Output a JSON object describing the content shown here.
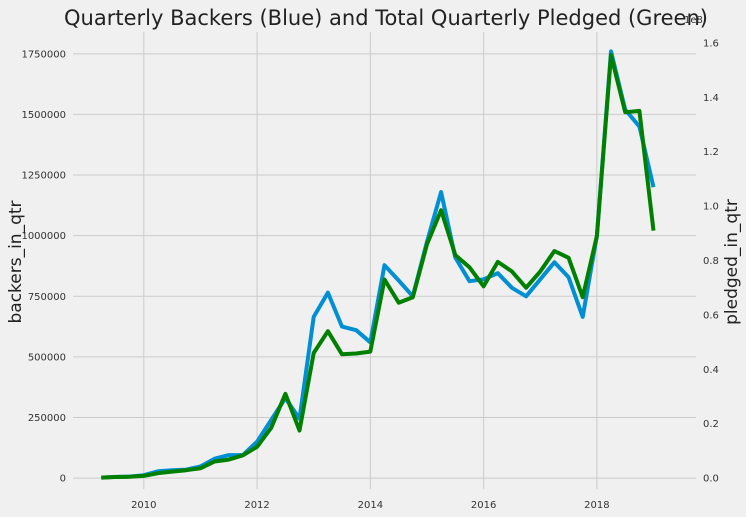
{
  "chart_data": {
    "type": "line",
    "title": "Quarterly Backers (Blue) and Total Quarterly Pledged (Green)",
    "xlabel": "",
    "ylabel_left": "backers_in_qtr",
    "ylabel_right": "pledged_in_qtr",
    "right_axis_multiplier": "1e8",
    "x_ticks": [
      "2010",
      "2012",
      "2014",
      "2016",
      "2018"
    ],
    "y_left_ticks": [
      "0",
      "250000",
      "500000",
      "750000",
      "1000000",
      "1250000",
      "1500000",
      "1750000"
    ],
    "y_right_ticks": [
      "0.0",
      "0.2",
      "0.4",
      "0.6",
      "0.8",
      "1.0",
      "1.2",
      "1.4",
      "1.6"
    ],
    "xlim": [
      2008.75,
      2019.75
    ],
    "ylim_left": [
      -45000,
      1840000
    ],
    "ylim_right": [
      -0.04,
      1.64
    ],
    "grid": true,
    "colors": {
      "backers": "#008fd5",
      "pledged": "#008000",
      "grid": "#cbcbcb",
      "background": "#f0f0f0"
    },
    "x": [
      2009.25,
      2009.5,
      2009.75,
      2010.0,
      2010.25,
      2010.5,
      2010.75,
      2011.0,
      2011.25,
      2011.5,
      2011.75,
      2012.0,
      2012.25,
      2012.5,
      2012.75,
      2013.0,
      2013.25,
      2013.5,
      2013.75,
      2014.0,
      2014.25,
      2014.5,
      2014.75,
      2015.0,
      2015.25,
      2015.5,
      2015.75,
      2016.0,
      2016.25,
      2016.5,
      2016.75,
      2017.0,
      2017.25,
      2017.5,
      2017.75,
      2018.0,
      2018.25,
      2018.5,
      2018.75,
      2019.0
    ],
    "series": [
      {
        "axis": "left",
        "color": "#008fd5",
        "values": [
          2000,
          5000,
          6000,
          12000,
          28000,
          32000,
          35000,
          48000,
          80000,
          95000,
          95000,
          150000,
          240000,
          330000,
          245000,
          665000,
          765000,
          625000,
          610000,
          560000,
          878000,
          815000,
          750000,
          975000,
          1180000,
          910000,
          812000,
          820000,
          845000,
          785000,
          750000,
          820000,
          890000,
          828000,
          665000,
          1000000,
          1760000,
          1520000,
          1450000,
          1200000
        ]
      },
      {
        "axis": "right",
        "color": "#008000",
        "values": [
          0.002,
          0.004,
          0.005,
          0.008,
          0.018,
          0.024,
          0.029,
          0.036,
          0.061,
          0.068,
          0.084,
          0.115,
          0.185,
          0.31,
          0.175,
          0.46,
          0.54,
          0.455,
          0.458,
          0.465,
          0.73,
          0.645,
          0.665,
          0.86,
          0.985,
          0.82,
          0.775,
          0.705,
          0.795,
          0.76,
          0.7,
          0.76,
          0.835,
          0.81,
          0.665,
          0.89,
          1.555,
          1.345,
          1.35,
          0.91
        ]
      }
    ]
  }
}
